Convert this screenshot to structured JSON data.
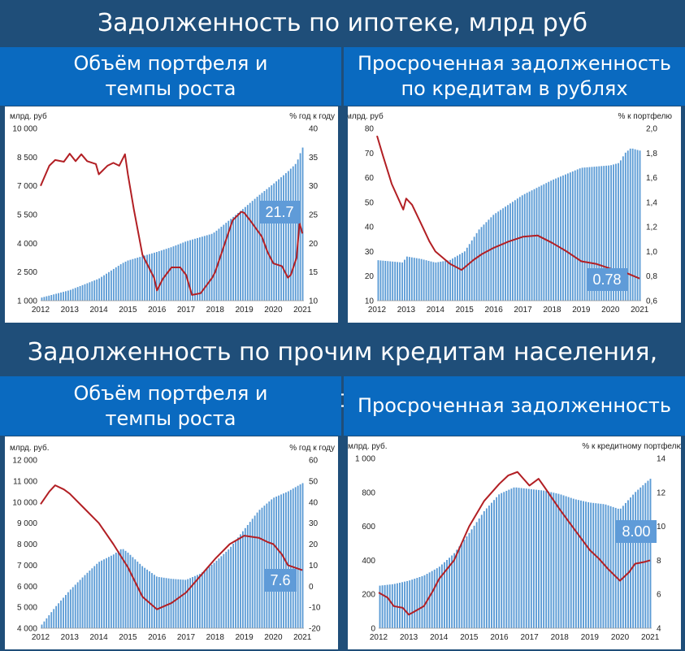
{
  "sections": [
    {
      "title": "Задолженность по ипотеке, млрд руб"
    },
    {
      "title": "Задолженность по прочим кредитам населения, млрд руб"
    }
  ],
  "panels": [
    {
      "title": "Объём портфеля и\nтемпы роста"
    },
    {
      "title": "Просроченная задолженность\nпо кредитам в рублях"
    },
    {
      "title": "Объём портфеля и\nтемпы роста"
    },
    {
      "title": "Просроченная задолженность"
    }
  ],
  "colors": {
    "bars": "#5b9bd5",
    "line": "#b21f24",
    "header_bg": "#1f4e79",
    "panel_title_bg": "#0a6ac0"
  },
  "chart_data": [
    {
      "type": "bar",
      "left_unit": "млрд. руб",
      "right_unit": "% год к году",
      "yticks_left": [
        "1 000",
        "2 500",
        "4 000",
        "5 500",
        "7 000",
        "8 500",
        "10 000"
      ],
      "yticks_right": [
        "10",
        "15",
        "20",
        "25",
        "30",
        "35",
        "40"
      ],
      "xticks": [
        "2012",
        "2013",
        "2014",
        "2015",
        "2016",
        "2017",
        "2018",
        "2019",
        "2020",
        "2021"
      ],
      "ylim_left": [
        1000,
        10000
      ],
      "ylim_right": [
        10,
        40
      ],
      "xlim": [
        2012,
        2021.05
      ],
      "callout": "21.7",
      "series": [
        {
          "kind": "bar",
          "axis": "left",
          "x": [
            2012.0,
            2013.0,
            2014.0,
            2014.8,
            2015.0,
            2016.0,
            2016.5,
            2017.0,
            2017.9,
            2018.0,
            2019.0,
            2019.5,
            2020.0,
            2020.5,
            2020.8,
            2021.0
          ],
          "values": [
            1150,
            1550,
            2150,
            2950,
            3100,
            3550,
            3800,
            4100,
            4500,
            4600,
            5850,
            6500,
            7100,
            7750,
            8200,
            9000
          ]
        },
        {
          "kind": "line",
          "axis": "right",
          "x": [
            2012.0,
            2012.3,
            2012.5,
            2012.8,
            2013.0,
            2013.2,
            2013.4,
            2013.6,
            2013.9,
            2014.0,
            2014.3,
            2014.5,
            2014.7,
            2014.9,
            2015.0,
            2015.2,
            2015.5,
            2015.9,
            2016.0,
            2016.2,
            2016.5,
            2016.8,
            2017.0,
            2017.2,
            2017.5,
            2017.9,
            2018.0,
            2018.4,
            2018.6,
            2018.9,
            2019.0,
            2019.2,
            2019.6,
            2019.8,
            2020.0,
            2020.3,
            2020.5,
            2020.6,
            2020.8,
            2020.9,
            2021.0
          ],
          "values": [
            30,
            33.5,
            34.5,
            34.2,
            35.6,
            34.3,
            35.5,
            34.3,
            33.8,
            32.0,
            33.5,
            34.0,
            33.5,
            35.5,
            32.0,
            26,
            18,
            14,
            11.8,
            13.8,
            15.8,
            15.8,
            14.5,
            11.0,
            11.3,
            14,
            15,
            21,
            24,
            25.5,
            25.3,
            24.0,
            21.2,
            18.5,
            16.5,
            16.0,
            14.0,
            14.5,
            17.5,
            23.5,
            21.7
          ]
        }
      ]
    },
    {
      "type": "bar",
      "left_unit": "млрд. руб",
      "right_unit": "% к портфелю",
      "yticks_left": [
        "10",
        "20",
        "30",
        "40",
        "50",
        "60",
        "70",
        "80"
      ],
      "yticks_right": [
        "0,6",
        "0,8",
        "1,0",
        "1,2",
        "1,4",
        "1,6",
        "1,8",
        "2,0"
      ],
      "xticks": [
        "2012",
        "2013",
        "2014",
        "2015",
        "2016",
        "2017",
        "2018",
        "2019",
        "2020",
        "2021"
      ],
      "ylim_left": [
        10,
        80
      ],
      "ylim_right": [
        0.6,
        2.0
      ],
      "xlim": [
        2012,
        2021.05
      ],
      "callout": "0.78",
      "series": [
        {
          "kind": "bar",
          "axis": "left",
          "x": [
            2012.0,
            2012.9,
            2013.0,
            2013.5,
            2014.0,
            2014.5,
            2015.0,
            2015.5,
            2016.0,
            2016.5,
            2017.0,
            2017.5,
            2018.0,
            2018.5,
            2019.0,
            2019.5,
            2020.0,
            2020.3,
            2020.5,
            2020.7,
            2021.0
          ],
          "values": [
            26.5,
            25.5,
            28,
            27.0,
            25.5,
            26.5,
            30,
            39,
            45,
            49,
            53,
            56,
            59,
            61.5,
            64,
            64.5,
            65,
            66,
            70,
            72,
            71
          ]
        },
        {
          "kind": "line",
          "axis": "right",
          "x": [
            2012.0,
            2012.2,
            2012.5,
            2012.9,
            2013.0,
            2013.2,
            2013.5,
            2013.8,
            2014.0,
            2014.5,
            2014.9,
            2015.0,
            2015.3,
            2015.6,
            2016.0,
            2016.5,
            2017.0,
            2017.5,
            2018.0,
            2018.5,
            2019.0,
            2019.5,
            2020.0,
            2020.5,
            2021.0
          ],
          "values": [
            1.94,
            1.78,
            1.55,
            1.34,
            1.43,
            1.38,
            1.23,
            1.08,
            1.0,
            0.9,
            0.85,
            0.87,
            0.93,
            0.98,
            1.03,
            1.08,
            1.12,
            1.13,
            1.07,
            1.0,
            0.92,
            0.9,
            0.86,
            0.83,
            0.78
          ]
        }
      ]
    },
    {
      "type": "bar",
      "left_unit": "млрд. руб.",
      "right_unit": "% год к году",
      "yticks_left": [
        "4 000",
        "5 000",
        "6 000",
        "7 000",
        "8 000",
        "9 000",
        "10 000",
        "11 000",
        "12 000"
      ],
      "yticks_right": [
        "-20",
        "-10",
        "0",
        "10",
        "20",
        "30",
        "40",
        "50",
        "60"
      ],
      "xticks": [
        "2012",
        "2013",
        "2014",
        "2015",
        "2016",
        "2017",
        "2018",
        "2019",
        "2020",
        "2021"
      ],
      "ylim_left": [
        4000,
        12000
      ],
      "ylim_right": [
        -20,
        60
      ],
      "xlim": [
        2012,
        2021.05
      ],
      "callout": "7.6",
      "series": [
        {
          "kind": "bar",
          "axis": "left",
          "x": [
            2012.0,
            2012.5,
            2013.0,
            2013.5,
            2014.0,
            2014.5,
            2014.8,
            2015.0,
            2015.5,
            2016.0,
            2016.5,
            2017.0,
            2017.5,
            2018.0,
            2018.5,
            2019.0,
            2019.5,
            2020.0,
            2020.5,
            2021.0
          ],
          "values": [
            4100,
            5000,
            5800,
            6500,
            7150,
            7500,
            7800,
            7600,
            6950,
            6450,
            6350,
            6300,
            6600,
            7150,
            7800,
            8700,
            9600,
            10200,
            10500,
            10900
          ]
        },
        {
          "kind": "line",
          "axis": "right",
          "x": [
            2012.0,
            2012.3,
            2012.5,
            2012.8,
            2013.0,
            2013.5,
            2014.0,
            2014.5,
            2015.0,
            2015.5,
            2016.0,
            2016.5,
            2017.0,
            2017.5,
            2018.0,
            2018.5,
            2019.0,
            2019.5,
            2019.8,
            2020.0,
            2020.3,
            2020.5,
            2021.0
          ],
          "values": [
            39,
            45,
            48,
            46,
            44,
            37,
            30,
            20,
            9,
            -5,
            -11,
            -8,
            -3,
            5,
            13,
            20,
            24,
            23,
            21,
            20,
            15,
            10,
            7.6
          ]
        }
      ]
    },
    {
      "type": "bar",
      "left_unit": "млрд. руб.",
      "right_unit": "% к кредитному портфелю",
      "yticks_left": [
        "0",
        "200",
        "400",
        "600",
        "800",
        "1 000"
      ],
      "yticks_right": [
        "4",
        "6",
        "8",
        "10",
        "12",
        "14"
      ],
      "xticks": [
        "2012",
        "2013",
        "2014",
        "2015",
        "2016",
        "2017",
        "2018",
        "2019",
        "2020",
        "2021"
      ],
      "ylim_left": [
        0,
        1000
      ],
      "ylim_right": [
        4,
        14
      ],
      "xlim": [
        2012,
        2021.05
      ],
      "callout": "8.00",
      "series": [
        {
          "kind": "bar",
          "axis": "left",
          "x": [
            2012.0,
            2012.5,
            2013.0,
            2013.5,
            2014.0,
            2014.5,
            2015.0,
            2015.5,
            2016.0,
            2016.5,
            2017.0,
            2017.5,
            2018.0,
            2018.5,
            2019.0,
            2019.5,
            2020.0,
            2020.5,
            2021.0
          ],
          "values": [
            250,
            260,
            280,
            310,
            360,
            440,
            560,
            690,
            790,
            830,
            820,
            810,
            790,
            760,
            740,
            730,
            700,
            800,
            880
          ]
        },
        {
          "kind": "line",
          "axis": "right",
          "x": [
            2012.0,
            2012.3,
            2012.5,
            2012.8,
            2013.0,
            2013.3,
            2013.5,
            2013.8,
            2014.0,
            2014.5,
            2015.0,
            2015.5,
            2016.0,
            2016.3,
            2016.6,
            2016.8,
            2017.0,
            2017.3,
            2017.5,
            2018.0,
            2018.5,
            2019.0,
            2019.3,
            2019.6,
            2020.0,
            2020.3,
            2020.5,
            2020.8,
            2021.0
          ],
          "values": [
            6.1,
            5.8,
            5.3,
            5.2,
            4.8,
            5.1,
            5.3,
            6.2,
            6.9,
            8.0,
            10.0,
            11.5,
            12.5,
            13.0,
            13.2,
            12.8,
            12.4,
            12.8,
            12.3,
            11.0,
            9.8,
            8.6,
            8.1,
            7.5,
            6.8,
            7.3,
            7.8,
            7.9,
            8.0
          ]
        }
      ]
    }
  ]
}
